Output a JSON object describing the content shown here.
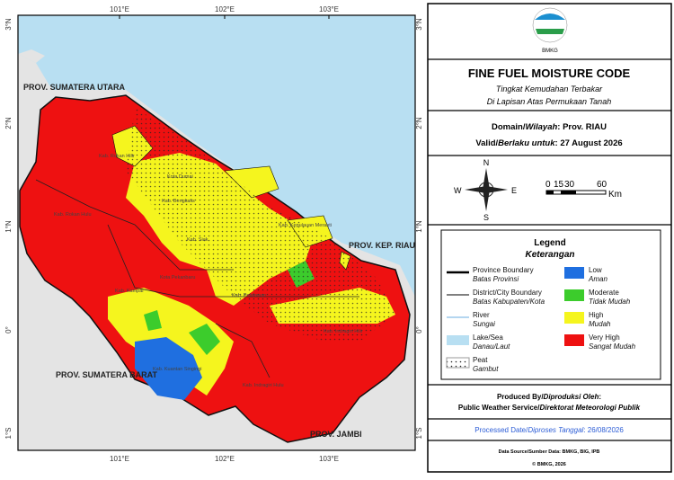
{
  "map": {
    "grid_labels_top": [
      "101°E",
      "102°E",
      "103°E"
    ],
    "grid_labels_left": [
      "3°N",
      "2°N",
      "1°N",
      "0°",
      "1°S"
    ],
    "place_labels": [
      "PROV. SUMATERA UTARA",
      "PROV. SUMATERA BARAT",
      "PROV. JAMBI",
      "PROV. KEP. RIAU",
      "Kab. Rokan Hilir",
      "Kota Dumai",
      "Kab. Rokan Hulu",
      "Kab. Bengkalis",
      "Kab. Siak",
      "Kota Pekanbaru",
      "Kab. Kampar",
      "Kab. Pelalawan",
      "Kab. Kepulauan Meranti",
      "Kab. Kuantan Singingi",
      "Kab. Indragiri Hulu",
      "Kab. Indragiri Hilir"
    ]
  },
  "header": {
    "logo_text": "BMKG",
    "title": "FINE FUEL MOISTURE CODE",
    "subtitle_lines": [
      "Tingkat Kemudahan Terbakar",
      "Di Lapisan Atas Permukaan Tanah"
    ]
  },
  "info": {
    "domain_label": "Domain/",
    "domain_label_it": "Wilayah",
    "domain_value": ": Prov. RIAU",
    "valid_label": "Valid/",
    "valid_label_it": "Berlaku untuk",
    "valid_value": ": 27 August 2026"
  },
  "compass": {
    "n": "N",
    "s": "S",
    "e": "E",
    "w": "W"
  },
  "scale": {
    "labels": [
      "0",
      "15",
      "30",
      "60"
    ],
    "unit": "Km"
  },
  "legend": {
    "title": "Legend",
    "subtitle": "Keterangan",
    "lines": [
      {
        "label": "Province Boundary",
        "sub": "Batas Provinsi"
      },
      {
        "label": "District/City Boundary",
        "sub": "Batas Kabupaten/Kota"
      },
      {
        "label": "River",
        "sub": "Sungai"
      },
      {
        "label": "Lake/Sea",
        "sub": "Danau/Laut"
      },
      {
        "label": "Peat",
        "sub": "Gambut"
      }
    ],
    "classes": [
      {
        "label": "Low",
        "sub": "Aman",
        "color": "#1f6fe0"
      },
      {
        "label": "Moderate",
        "sub": "Tidak Mudah",
        "color": "#3ccc2c"
      },
      {
        "label": "High",
        "sub": "Mudah",
        "color": "#f5f51e"
      },
      {
        "label": "Very High",
        "sub": "Sangat Mudah",
        "color": "#ee1111"
      }
    ]
  },
  "footer": {
    "produced_label": "Produced By/",
    "produced_label_it": "Diproduksi Oleh",
    "produced_colon": ":",
    "producer": "Public Weather Service/",
    "producer_it": "Direktorat Meteorologi Publik",
    "processed": "Processed Date/",
    "processed_it": "Diproses Tanggal",
    "processed_value": ": 26/08/2026",
    "source": "Data Source/Sumber Data: BMKG, BIG, IPB",
    "copyright": "© BMKG, 2026"
  }
}
